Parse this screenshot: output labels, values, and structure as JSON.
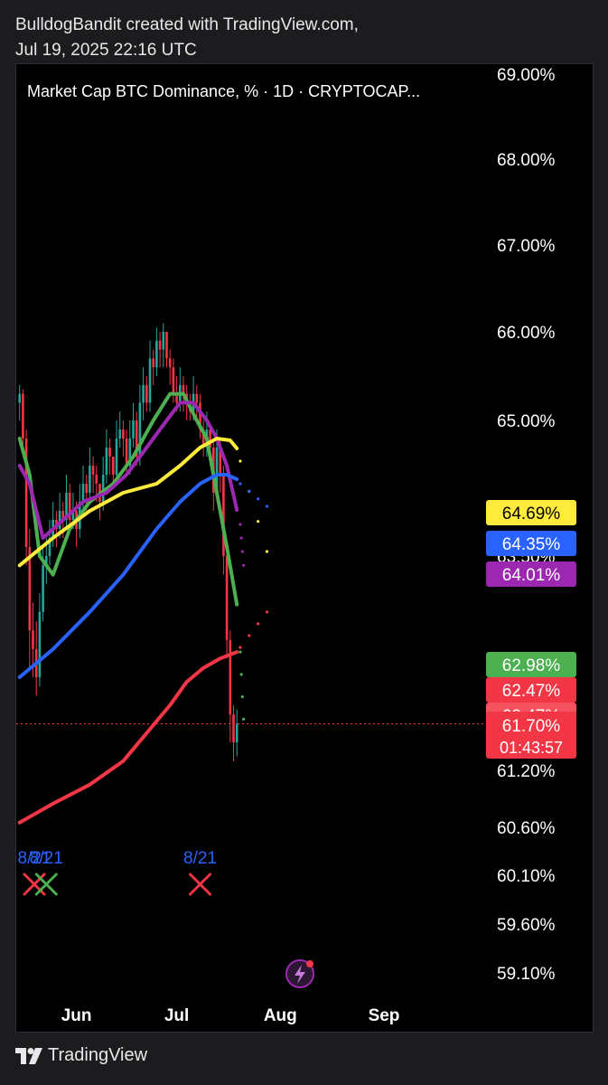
{
  "header": {
    "line1": "BulldogBandit created with TradingView.com,",
    "line2": "Jul 19, 2025 22:16 UTC"
  },
  "footer": {
    "brand": "TradingView",
    "logo_icon": "tradingview-logo-icon"
  },
  "colors": {
    "candle_up": "#26a69a",
    "candle_down": "#f23645",
    "ma_green": "#4caf50",
    "ma_purple": "#9c27b0",
    "ma_yellow": "#ffeb3b",
    "ma_blue": "#2962ff",
    "ma_red": "#f23645",
    "background": "#000000"
  },
  "chart_data": {
    "type": "line",
    "title": "Market Cap BTC Dominance, % · 1D · CRYPTOCAP...",
    "y_unit": "%",
    "y_ticks": [
      "69.00%",
      "68.00%",
      "67.00%",
      "66.00%",
      "65.00%",
      "63.50%",
      "61.20%",
      "60.60%",
      "60.10%",
      "59.60%",
      "59.10%"
    ],
    "x_ticks": [
      "Jun",
      "Jul",
      "Aug",
      "Sep"
    ],
    "x_range": [
      "2025-05-15",
      "2025-09-15"
    ],
    "current_price": "61.70%",
    "countdown": "01:43:57",
    "price_labels": [
      {
        "text": "64.69%",
        "value": 64.69,
        "bg": "#ffeb3b",
        "fg": "#000000"
      },
      {
        "text": "64.35%",
        "value": 64.35,
        "bg": "#2962ff",
        "fg": "#ffffff"
      },
      {
        "text": "64.01%",
        "value": 64.01,
        "bg": "#9c27b0",
        "fg": "#ffffff"
      },
      {
        "text": "62.98%",
        "value": 62.98,
        "bg": "#4caf50",
        "fg": "#ffffff"
      },
      {
        "text": "62.47%",
        "value": 62.47,
        "bg": "#f23645",
        "fg": "#ffffff"
      },
      {
        "text": "62.47%",
        "value": 62.47,
        "bg": "#f7525f",
        "fg": "#ffffff"
      }
    ],
    "signals": [
      {
        "label": "8/21",
        "date": "2025-05-15",
        "marker": "x",
        "color": "#f23645"
      },
      {
        "label": "8/21",
        "date": "2025-05-23",
        "marker": "x",
        "color": "#4caf50"
      },
      {
        "label": "8/21",
        "date": "2025-07-08",
        "marker": "x",
        "color": "#f23645"
      }
    ],
    "series": [
      {
        "name": "",
        "color": "#4caf50",
        "dates": [
          "2025-05-15",
          "2025-05-18",
          "2025-05-21",
          "2025-05-25",
          "2025-05-30",
          "2025-06-05",
          "2025-06-12",
          "2025-06-18",
          "2025-06-24",
          "2025-06-29",
          "2025-07-03",
          "2025-07-07",
          "2025-07-10",
          "2025-07-13",
          "2025-07-16",
          "2025-07-19"
        ],
        "values": [
          64.8,
          64.4,
          63.5,
          63.3,
          63.8,
          64.1,
          64.3,
          64.6,
          65.0,
          65.3,
          65.3,
          65.0,
          64.8,
          64.2,
          63.6,
          62.98
        ]
      },
      {
        "name": "",
        "color": "#9c27b0",
        "dates": [
          "2025-05-15",
          "2025-05-18",
          "2025-05-22",
          "2025-05-28",
          "2025-06-03",
          "2025-06-10",
          "2025-06-16",
          "2025-06-22",
          "2025-06-28",
          "2025-07-02",
          "2025-07-06",
          "2025-07-10",
          "2025-07-13",
          "2025-07-16",
          "2025-07-19"
        ],
        "values": [
          64.5,
          64.3,
          63.7,
          63.9,
          64.1,
          64.2,
          64.4,
          64.7,
          65.0,
          65.2,
          65.2,
          65.0,
          64.8,
          64.5,
          64.01
        ]
      },
      {
        "name": "",
        "color": "#ffeb3b",
        "dates": [
          "2025-05-15",
          "2025-05-25",
          "2025-06-05",
          "2025-06-15",
          "2025-06-25",
          "2025-07-02",
          "2025-07-08",
          "2025-07-13",
          "2025-07-17",
          "2025-07-19"
        ],
        "values": [
          63.4,
          63.7,
          64.0,
          64.2,
          64.3,
          64.5,
          64.7,
          64.8,
          64.78,
          64.69
        ]
      },
      {
        "name": "",
        "color": "#2962ff",
        "dates": [
          "2025-05-15",
          "2025-05-25",
          "2025-06-05",
          "2025-06-15",
          "2025-06-25",
          "2025-07-02",
          "2025-07-08",
          "2025-07-13",
          "2025-07-16",
          "2025-07-19"
        ],
        "values": [
          62.2,
          62.5,
          62.9,
          63.3,
          63.8,
          64.1,
          64.3,
          64.4,
          64.4,
          64.35
        ]
      },
      {
        "name": "",
        "color": "#f23645",
        "dates": [
          "2025-05-15",
          "2025-05-25",
          "2025-06-05",
          "2025-06-15",
          "2025-06-22",
          "2025-06-29",
          "2025-07-04",
          "2025-07-09",
          "2025-07-14",
          "2025-07-19"
        ],
        "values": [
          60.65,
          60.85,
          61.05,
          61.3,
          61.6,
          61.9,
          62.15,
          62.3,
          62.4,
          62.47
        ]
      }
    ],
    "candles": {
      "dates": [
        "2025-05-15",
        "2025-05-16",
        "2025-05-17",
        "2025-05-18",
        "2025-05-19",
        "2025-05-20",
        "2025-05-21",
        "2025-05-22",
        "2025-05-23",
        "2025-05-24",
        "2025-05-25",
        "2025-05-26",
        "2025-05-27",
        "2025-05-28",
        "2025-05-29",
        "2025-05-30",
        "2025-05-31",
        "2025-06-01",
        "2025-06-02",
        "2025-06-03",
        "2025-06-04",
        "2025-06-05",
        "2025-06-06",
        "2025-06-07",
        "2025-06-08",
        "2025-06-09",
        "2025-06-10",
        "2025-06-11",
        "2025-06-12",
        "2025-06-13",
        "2025-06-14",
        "2025-06-15",
        "2025-06-16",
        "2025-06-17",
        "2025-06-18",
        "2025-06-19",
        "2025-06-20",
        "2025-06-21",
        "2025-06-22",
        "2025-06-23",
        "2025-06-24",
        "2025-06-25",
        "2025-06-26",
        "2025-06-27",
        "2025-06-28",
        "2025-06-29",
        "2025-06-30",
        "2025-07-01",
        "2025-07-02",
        "2025-07-03",
        "2025-07-04",
        "2025-07-05",
        "2025-07-06",
        "2025-07-07",
        "2025-07-08",
        "2025-07-09",
        "2025-07-10",
        "2025-07-11",
        "2025-07-12",
        "2025-07-13",
        "2025-07-14",
        "2025-07-15",
        "2025-07-16",
        "2025-07-17",
        "2025-07-18",
        "2025-07-19"
      ],
      "open": [
        65.2,
        65.3,
        64.8,
        63.6,
        62.7,
        62.5,
        62.2,
        62.9,
        63.4,
        63.5,
        63.7,
        63.9,
        63.8,
        64.0,
        63.9,
        64.2,
        63.9,
        64.0,
        63.8,
        64.1,
        64.3,
        64.2,
        64.5,
        64.4,
        64.3,
        64.1,
        64.4,
        64.7,
        64.6,
        64.4,
        64.8,
        64.9,
        64.8,
        64.5,
        64.8,
        65.0,
        64.6,
        65.2,
        65.4,
        65.2,
        65.7,
        65.6,
        65.9,
        65.8,
        66.0,
        65.7,
        65.6,
        65.3,
        65.2,
        65.4,
        65.3,
        65.2,
        65.1,
        65.3,
        65.2,
        64.9,
        64.7,
        64.9,
        64.7,
        64.2,
        64.7,
        64.4,
        63.5,
        62.6,
        61.8,
        61.5
      ],
      "close": [
        65.3,
        64.8,
        63.6,
        62.7,
        62.5,
        62.2,
        62.9,
        63.4,
        63.5,
        63.7,
        63.9,
        63.8,
        64.0,
        63.9,
        64.2,
        63.9,
        64.0,
        63.8,
        64.1,
        64.3,
        64.2,
        64.5,
        64.4,
        64.3,
        64.1,
        64.4,
        64.7,
        64.6,
        64.4,
        64.8,
        64.9,
        64.8,
        64.5,
        64.8,
        65.0,
        64.6,
        65.2,
        65.4,
        65.2,
        65.7,
        65.6,
        65.9,
        65.8,
        66.0,
        65.7,
        65.6,
        65.3,
        65.2,
        65.4,
        65.3,
        65.2,
        65.1,
        65.3,
        65.2,
        64.9,
        64.7,
        64.9,
        64.7,
        64.2,
        64.7,
        64.4,
        63.5,
        62.6,
        61.8,
        61.5,
        61.7
      ],
      "high": [
        65.4,
        65.35,
        64.9,
        63.8,
        63.0,
        62.8,
        63.1,
        63.6,
        63.7,
        63.9,
        64.1,
        64.0,
        64.2,
        64.1,
        64.4,
        64.3,
        64.2,
        64.1,
        64.3,
        64.5,
        64.4,
        64.7,
        64.6,
        64.5,
        64.3,
        64.6,
        64.9,
        64.8,
        64.6,
        65.0,
        65.1,
        65.0,
        64.9,
        65.0,
        65.2,
        65.1,
        65.4,
        65.6,
        65.5,
        65.9,
        65.8,
        66.05,
        66.0,
        66.1,
        66.0,
        65.8,
        65.7,
        65.5,
        65.6,
        65.5,
        65.4,
        65.3,
        65.5,
        65.4,
        65.3,
        65.0,
        65.1,
        64.95,
        64.8,
        64.9,
        64.8,
        64.5,
        63.6,
        62.7,
        61.9,
        61.85
      ],
      "low": [
        65.0,
        64.6,
        63.4,
        62.3,
        62.2,
        62.0,
        62.1,
        62.8,
        63.2,
        63.4,
        63.6,
        63.6,
        63.7,
        63.7,
        63.8,
        63.8,
        63.8,
        63.6,
        63.7,
        64.0,
        64.0,
        64.1,
        64.2,
        64.1,
        63.9,
        64.0,
        64.3,
        64.4,
        64.3,
        64.3,
        64.7,
        64.6,
        64.4,
        64.4,
        64.7,
        64.5,
        64.5,
        65.0,
        65.1,
        65.1,
        65.4,
        65.5,
        65.6,
        65.6,
        65.6,
        65.4,
        65.2,
        65.1,
        65.1,
        65.1,
        65.0,
        65.0,
        65.0,
        65.0,
        64.8,
        64.6,
        64.6,
        64.5,
        64.0,
        64.1,
        64.2,
        63.3,
        62.4,
        61.5,
        61.3,
        61.35
      ]
    }
  }
}
